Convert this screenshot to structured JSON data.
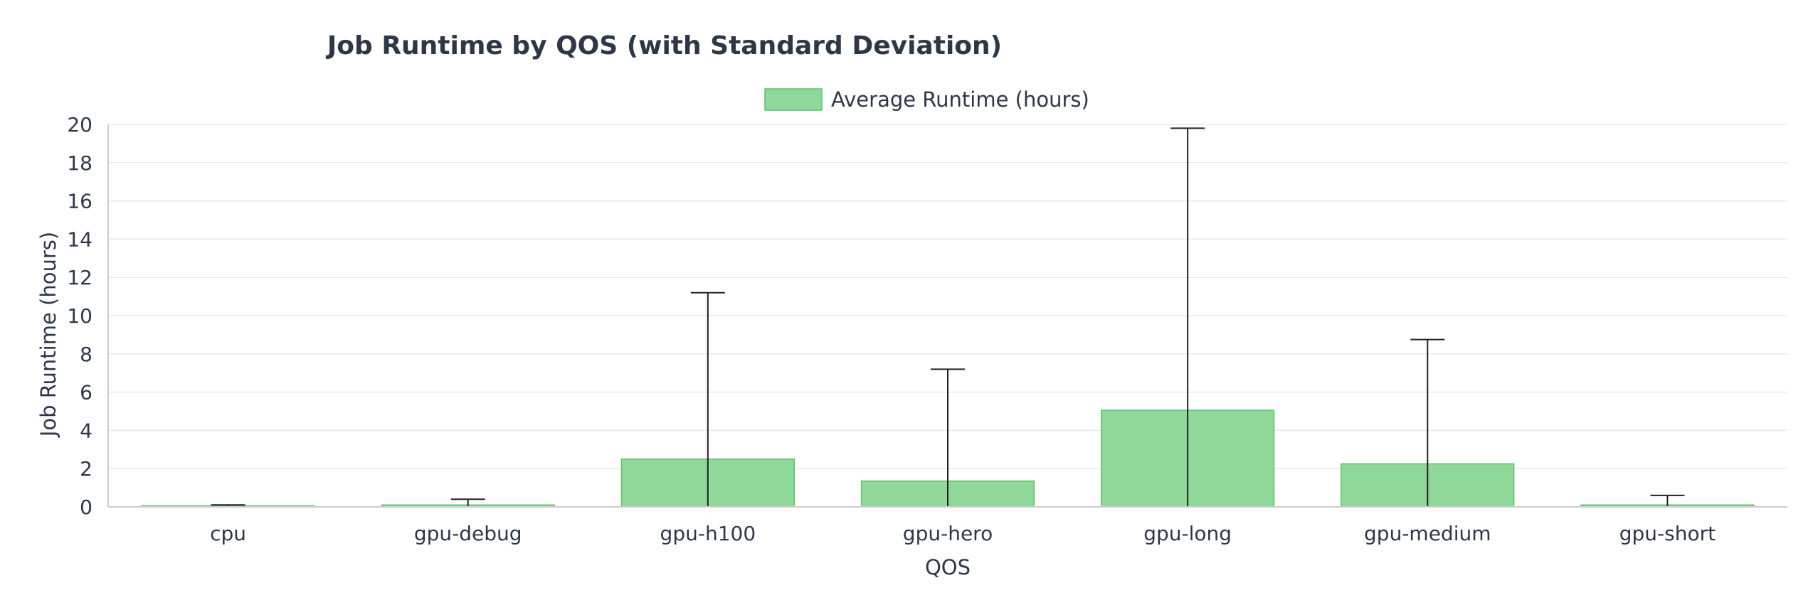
{
  "chart_data": {
    "type": "bar",
    "title": "Job Runtime by QOS (with Standard Deviation)",
    "xlabel": "QOS",
    "ylabel": "Job Runtime (hours)",
    "categories": [
      "cpu",
      "gpu-debug",
      "gpu-h100",
      "gpu-hero",
      "gpu-long",
      "gpu-medium",
      "gpu-short"
    ],
    "series": [
      {
        "name": "Average Runtime (hours)",
        "values": [
          0.02,
          0.1,
          2.5,
          1.35,
          5.05,
          2.25,
          0.1
        ],
        "error_upper": [
          0.1,
          0.4,
          11.2,
          7.2,
          19.8,
          8.75,
          0.6
        ],
        "error_lower": [
          0,
          0,
          0,
          0,
          0,
          0,
          0
        ]
      }
    ],
    "ylim": [
      0,
      20
    ],
    "yticks": [
      0,
      2,
      4,
      6,
      8,
      10,
      12,
      14,
      16,
      18,
      20
    ],
    "grid": true,
    "legend": "top-center",
    "colors": {
      "bar_fill": "#8fd89a",
      "bar_stroke": "#5cc26e",
      "error_bar": "#222222"
    }
  }
}
